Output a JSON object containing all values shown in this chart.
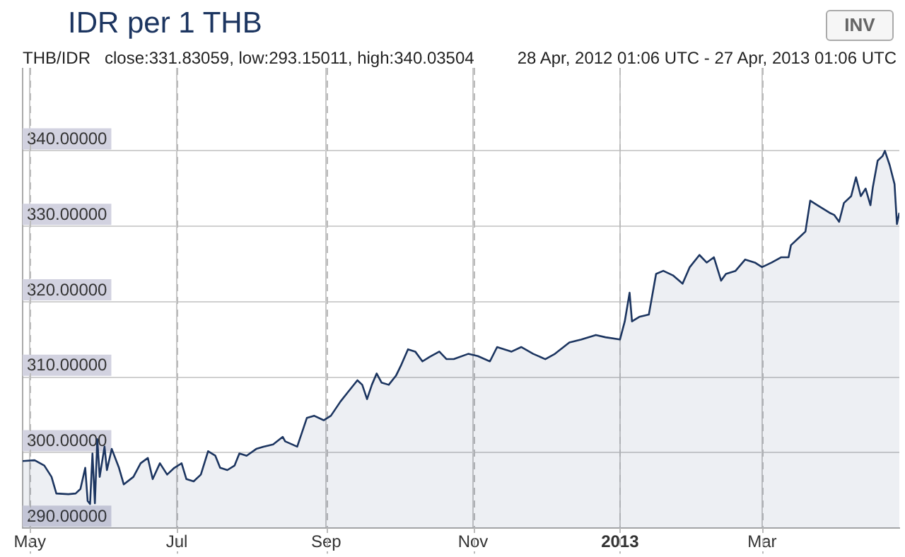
{
  "chart_data": {
    "type": "area",
    "title": "IDR per 1 THB",
    "subtitle": "THB/IDR   close:331.83059, low:293.15011, high:340.03504",
    "annotations": [
      "28 Apr, 2012 01:06 UTC - 27 Apr, 2013 01:06 UTC",
      "INV"
    ],
    "x": [
      "2012-04-28",
      "2012-05-03",
      "2012-05-07",
      "2012-05-10",
      "2012-05-12",
      "2012-05-17",
      "2012-05-20",
      "2012-05-22",
      "2012-05-24",
      "2012-05-25",
      "2012-05-26",
      "2012-05-27",
      "2012-05-28",
      "2012-05-29",
      "2012-05-30",
      "2012-06-01",
      "2012-06-02",
      "2012-06-04",
      "2012-06-07",
      "2012-06-09",
      "2012-06-13",
      "2012-06-16",
      "2012-06-19",
      "2012-06-21",
      "2012-06-24",
      "2012-06-27",
      "2012-06-30",
      "2012-07-03",
      "2012-07-05",
      "2012-07-08",
      "2012-07-11",
      "2012-07-14",
      "2012-07-17",
      "2012-07-19",
      "2012-07-22",
      "2012-07-25",
      "2012-07-27",
      "2012-07-30",
      "2012-08-03",
      "2012-08-06",
      "2012-08-10",
      "2012-08-14",
      "2012-08-15",
      "2012-08-20",
      "2012-08-24",
      "2012-08-27",
      "2012-08-31",
      "2012-09-03",
      "2012-09-07",
      "2012-09-10",
      "2012-09-14",
      "2012-09-16",
      "2012-09-18",
      "2012-09-20",
      "2012-09-22",
      "2012-09-24",
      "2012-09-27",
      "2012-09-30",
      "2012-10-02",
      "2012-10-05",
      "2012-10-08",
      "2012-10-11",
      "2012-10-14",
      "2012-10-18",
      "2012-10-21",
      "2012-10-24",
      "2012-10-30",
      "2012-11-03",
      "2012-11-08",
      "2012-11-11",
      "2012-11-17",
      "2012-11-21",
      "2012-11-26",
      "2012-12-01",
      "2012-12-05",
      "2012-12-11",
      "2012-12-16",
      "2012-12-22",
      "2012-12-26",
      "2013-01-01",
      "2013-01-03",
      "2013-01-05",
      "2013-01-06",
      "2013-01-09",
      "2013-01-13",
      "2013-01-16",
      "2013-01-19",
      "2013-01-23",
      "2013-01-27",
      "2013-01-30",
      "2013-02-03",
      "2013-02-06",
      "2013-02-09",
      "2013-02-12",
      "2013-02-14",
      "2013-02-18",
      "2013-02-22",
      "2013-02-26",
      "2013-03-01",
      "2013-03-05",
      "2013-03-09",
      "2013-03-12",
      "2013-03-13",
      "2013-03-16",
      "2013-03-19",
      "2013-03-21",
      "2013-03-24",
      "2013-03-29",
      "2013-03-31",
      "2013-04-02",
      "2013-04-04",
      "2013-04-07",
      "2013-04-09",
      "2013-04-11",
      "2013-04-13",
      "2013-04-15",
      "2013-04-16",
      "2013-04-18",
      "2013-04-20",
      "2013-04-21",
      "2013-04-23",
      "2013-04-25",
      "2013-04-26",
      "2013-04-27"
    ],
    "series": [
      {
        "color": "#1c3560",
        "values": [
          298.9,
          299,
          298.3,
          296.8,
          294.6,
          294.5,
          294.6,
          295.2,
          298,
          293.6,
          293.2,
          299.9,
          293.3,
          301.8,
          296.8,
          300.8,
          297.7,
          300.5,
          298,
          295.8,
          296.8,
          298.6,
          299.3,
          296.5,
          298.6,
          297.1,
          298,
          298.6,
          296.5,
          296.2,
          297.1,
          300.2,
          299.6,
          298,
          297.7,
          298.3,
          299.9,
          299.6,
          300.5,
          300.8,
          301.1,
          302.1,
          301.5,
          300.8,
          304.6,
          304.9,
          304.3,
          304.9,
          306.8,
          308,
          309.6,
          309,
          307.1,
          309,
          310.5,
          309.3,
          309,
          310.2,
          311.5,
          313.7,
          313.4,
          312.1,
          312.7,
          313.4,
          312.4,
          312.4,
          313.1,
          312.8,
          312.1,
          314,
          313.4,
          314,
          313.1,
          312.4,
          313.1,
          314.6,
          315,
          315.6,
          315.3,
          315,
          317.4,
          321.2,
          317.4,
          318,
          318.3,
          323.7,
          324.1,
          323.5,
          322.4,
          324.6,
          326.2,
          325.2,
          325.9,
          322.8,
          323.7,
          324.1,
          325.6,
          325.2,
          324.6,
          325.2,
          325.9,
          325.9,
          327.5,
          328.4,
          329.3,
          333.4,
          332.8,
          331.8,
          331.5,
          330.6,
          333.1,
          334,
          336.5,
          334,
          335,
          332.8,
          335.2,
          338.7,
          339.3,
          340,
          338.1,
          335.6,
          330.3,
          331.8
        ]
      }
    ],
    "xlim": [
      "2012-04-28",
      "2013-04-27"
    ],
    "xticks": [
      {
        "value": "2012-05-01",
        "label": "May"
      },
      {
        "value": "2012-07-01",
        "label": "Jul"
      },
      {
        "value": "2012-09-01",
        "label": "Sep"
      },
      {
        "value": "2012-11-01",
        "label": "Nov"
      },
      {
        "value": "2013-01-01",
        "label": "2013"
      },
      {
        "value": "2013-03-01",
        "label": "Mar"
      }
    ],
    "ylim": [
      290,
      351
    ],
    "yticks": [
      {
        "value": 290,
        "label": "290.00000"
      },
      {
        "value": 300,
        "label": "300.00000"
      },
      {
        "value": 310,
        "label": "310.00000"
      },
      {
        "value": 320,
        "label": "320.00000"
      },
      {
        "value": 330,
        "label": "330.00000"
      },
      {
        "value": 340,
        "label": "340.00000"
      }
    ],
    "grid": true,
    "legend": false,
    "marker": "none",
    "line_style": "solid"
  }
}
